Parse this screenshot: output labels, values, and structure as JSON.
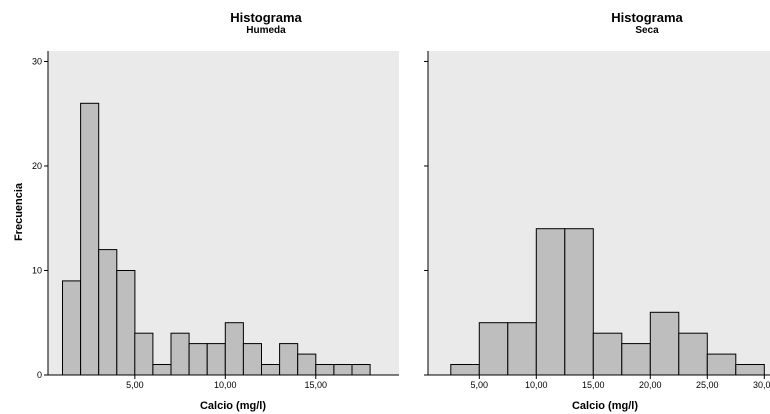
{
  "chart_data": [
    {
      "type": "bar",
      "title": "Histograma",
      "subtitle": "Humeda",
      "xlabel": "Calcio (mg/l)",
      "ylabel": "Frecuencia",
      "xlim": [
        0.2,
        19.6
      ],
      "ylim": [
        0,
        31
      ],
      "xticks": [
        5,
        10,
        15
      ],
      "xtick_labels": [
        "5,00",
        "10,00",
        "15,00"
      ],
      "yticks": [
        0,
        10,
        20,
        30
      ],
      "ytick_labels": [
        "0",
        "10",
        "20",
        "30"
      ],
      "bin_width": 1,
      "bin_starts": [
        1,
        2,
        3,
        4,
        5,
        6,
        7,
        8,
        9,
        10,
        11,
        12,
        13,
        14,
        15,
        16,
        17
      ],
      "values": [
        9,
        26,
        12,
        10,
        4,
        1,
        4,
        3,
        3,
        5,
        3,
        1,
        3,
        2,
        1,
        1,
        1
      ],
      "grid": false,
      "colors": {
        "bar": "#bebebe",
        "plot_bg": "#eaeaea"
      }
    },
    {
      "type": "bar",
      "title": "Histograma",
      "subtitle": "Seca",
      "xlabel": "Calcio (mg/l)",
      "ylabel": "",
      "xlim": [
        0.5,
        30.5
      ],
      "ylim": [
        0,
        31
      ],
      "xticks": [
        5,
        10,
        15,
        20,
        25,
        30
      ],
      "xtick_labels": [
        "5,00",
        "10,00",
        "15,00",
        "20,00",
        "25,00",
        "30,00"
      ],
      "yticks": [
        0,
        10,
        20,
        30
      ],
      "ytick_labels": [],
      "bin_width": 2.5,
      "bin_starts": [
        2.5,
        5,
        7.5,
        10,
        12.5,
        15,
        17.5,
        20,
        22.5,
        25,
        27.5
      ],
      "values": [
        1,
        5,
        5,
        14,
        14,
        4,
        3,
        6,
        4,
        2,
        1
      ],
      "grid": false,
      "colors": {
        "bar": "#bebebe",
        "plot_bg": "#eaeaea"
      }
    }
  ]
}
